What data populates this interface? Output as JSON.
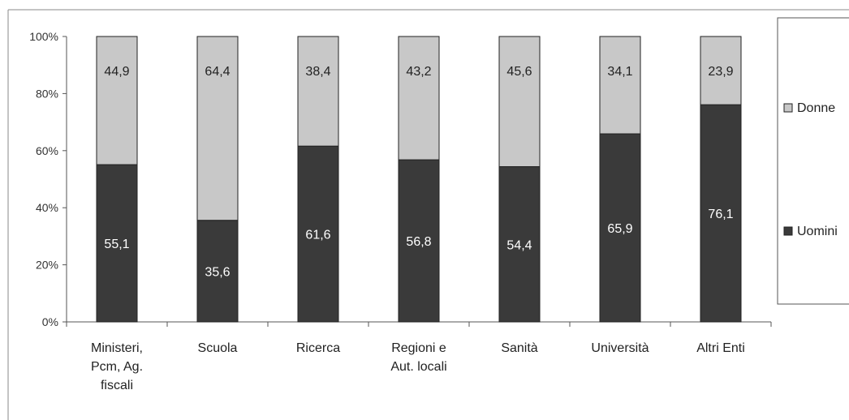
{
  "chart_data": {
    "type": "bar",
    "stacked": true,
    "percent_stacked": true,
    "categories": [
      "Ministeri, Pcm, Ag. fiscali",
      "Scuola",
      "Ricerca",
      "Regioni e Aut. locali",
      "Sanità",
      "Università",
      "Altri Enti"
    ],
    "category_lines": [
      [
        "Ministeri,",
        "Pcm, Ag.",
        "fiscali"
      ],
      [
        "Scuola"
      ],
      [
        "Ricerca"
      ],
      [
        "Regioni e",
        "Aut. locali"
      ],
      [
        "Sanità"
      ],
      [
        "Università"
      ],
      [
        "Altri Enti"
      ]
    ],
    "series": [
      {
        "name": "Uomini",
        "values": [
          55.1,
          35.6,
          61.6,
          56.8,
          54.4,
          65.9,
          76.1
        ],
        "labels": [
          "55,1",
          "35,6",
          "61,6",
          "56,8",
          "54,4",
          "65,9",
          "76,1"
        ],
        "color": "#3a3a3a",
        "label_color": "#ffffff"
      },
      {
        "name": "Donne",
        "values": [
          44.9,
          64.4,
          38.4,
          43.2,
          45.6,
          34.1,
          23.9
        ],
        "labels": [
          "44,9",
          "64,4",
          "38,4",
          "43,2",
          "45,6",
          "34,1",
          "23,9"
        ],
        "color": "#c8c8c8",
        "label_color": "#222222"
      }
    ],
    "y_ticks": [
      "0%",
      "20%",
      "40%",
      "60%",
      "80%",
      "100%"
    ],
    "ylim": [
      0,
      100
    ],
    "grid": false,
    "legend": {
      "position": "right",
      "entries": [
        "Donne",
        "Uomini"
      ]
    }
  }
}
